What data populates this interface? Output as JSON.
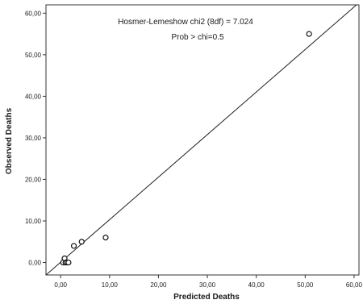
{
  "chart_data": {
    "type": "scatter",
    "xlabel": "Predicted Deaths",
    "ylabel": "Observed Deaths",
    "xlim": [
      -3,
      61
    ],
    "ylim": [
      -3,
      62
    ],
    "x_ticks": [
      "0,00",
      "10,00",
      "20,00",
      "30,00",
      "40,00",
      "50,00",
      "60,00"
    ],
    "y_ticks": [
      "0,00",
      "10,00",
      "20,00",
      "30,00",
      "40,00",
      "50,00",
      "60,00"
    ],
    "grid": false,
    "annotations": [
      "Hosmer-Lemeshow chi2 (8df) = 7.024",
      "Prob > chi=0.5"
    ],
    "reference_line": {
      "from": [
        -3,
        -3
      ],
      "to": [
        60.5,
        62
      ]
    },
    "points": [
      {
        "x": 0.5,
        "y": 0
      },
      {
        "x": 0.8,
        "y": 1
      },
      {
        "x": 1.0,
        "y": 0
      },
      {
        "x": 1.3,
        "y": 0
      },
      {
        "x": 1.6,
        "y": 0
      },
      {
        "x": 2.7,
        "y": 4
      },
      {
        "x": 4.3,
        "y": 5
      },
      {
        "x": 9.2,
        "y": 6
      },
      {
        "x": 50.8,
        "y": 55
      }
    ]
  }
}
